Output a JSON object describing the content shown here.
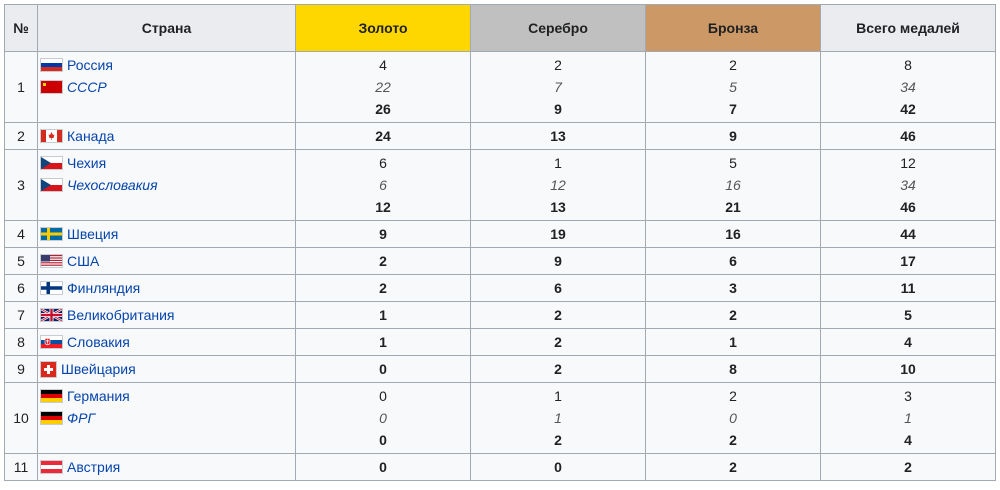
{
  "headers": {
    "rank": "№",
    "country": "Страна",
    "gold": "Золото",
    "silver": "Серебро",
    "bronze": "Бронза",
    "total": "Всего медалей"
  },
  "colors": {
    "gold": "#ffd700",
    "silver": "#c0c0c0",
    "bronze": "#cc9966",
    "header": "#eaecf0",
    "link": "#0645ad"
  },
  "rows": [
    {
      "rank": "1",
      "countries": [
        {
          "name": "Россия",
          "flag": "russia-flag-icon",
          "style": "normal"
        },
        {
          "name": "СССР",
          "flag": "ussr-flag-icon",
          "style": "italic"
        }
      ],
      "gold": [
        "4",
        "22",
        "26"
      ],
      "silver": [
        "2",
        "7",
        "9"
      ],
      "bronze": [
        "2",
        "5",
        "7"
      ],
      "total": [
        "8",
        "34",
        "42"
      ]
    },
    {
      "rank": "2",
      "countries": [
        {
          "name": "Канада",
          "flag": "canada-flag-icon",
          "style": "normal"
        }
      ],
      "gold": [
        "24"
      ],
      "silver": [
        "13"
      ],
      "bronze": [
        "9"
      ],
      "total": [
        "46"
      ]
    },
    {
      "rank": "3",
      "countries": [
        {
          "name": "Чехия",
          "flag": "czech-flag-icon",
          "style": "normal"
        },
        {
          "name": "Чехословакия",
          "flag": "czechoslovakia-flag-icon",
          "style": "italic"
        }
      ],
      "gold": [
        "6",
        "6",
        "12"
      ],
      "silver": [
        "1",
        "12",
        "13"
      ],
      "bronze": [
        "5",
        "16",
        "21"
      ],
      "total": [
        "12",
        "34",
        "46"
      ]
    },
    {
      "rank": "4",
      "countries": [
        {
          "name": "Швеция",
          "flag": "sweden-flag-icon",
          "style": "normal"
        }
      ],
      "gold": [
        "9"
      ],
      "silver": [
        "19"
      ],
      "bronze": [
        "16"
      ],
      "total": [
        "44"
      ]
    },
    {
      "rank": "5",
      "countries": [
        {
          "name": "США",
          "flag": "usa-flag-icon",
          "style": "normal"
        }
      ],
      "gold": [
        "2"
      ],
      "silver": [
        "9"
      ],
      "bronze": [
        "6"
      ],
      "total": [
        "17"
      ]
    },
    {
      "rank": "6",
      "countries": [
        {
          "name": "Финляндия",
          "flag": "finland-flag-icon",
          "style": "normal"
        }
      ],
      "gold": [
        "2"
      ],
      "silver": [
        "6"
      ],
      "bronze": [
        "3"
      ],
      "total": [
        "11"
      ]
    },
    {
      "rank": "7",
      "countries": [
        {
          "name": "Великобритания",
          "flag": "uk-flag-icon",
          "style": "normal"
        }
      ],
      "gold": [
        "1"
      ],
      "silver": [
        "2"
      ],
      "bronze": [
        "2"
      ],
      "total": [
        "5"
      ]
    },
    {
      "rank": "8",
      "countries": [
        {
          "name": "Словакия",
          "flag": "slovakia-flag-icon",
          "style": "normal"
        }
      ],
      "gold": [
        "1"
      ],
      "silver": [
        "2"
      ],
      "bronze": [
        "1"
      ],
      "total": [
        "4"
      ]
    },
    {
      "rank": "9",
      "countries": [
        {
          "name": "Швейцария",
          "flag": "switzerland-flag-icon",
          "style": "normal"
        }
      ],
      "gold": [
        "0"
      ],
      "silver": [
        "2"
      ],
      "bronze": [
        "8"
      ],
      "total": [
        "10"
      ]
    },
    {
      "rank": "10",
      "countries": [
        {
          "name": "Германия",
          "flag": "germany-flag-icon",
          "style": "normal"
        },
        {
          "name": "ФРГ",
          "flag": "frg-flag-icon",
          "style": "italic"
        }
      ],
      "gold": [
        "0",
        "0",
        "0"
      ],
      "silver": [
        "1",
        "1",
        "2"
      ],
      "bronze": [
        "2",
        "0",
        "2"
      ],
      "total": [
        "3",
        "1",
        "4"
      ]
    },
    {
      "rank": "11",
      "countries": [
        {
          "name": "Австрия",
          "flag": "austria-flag-icon",
          "style": "normal"
        }
      ],
      "gold": [
        "0"
      ],
      "silver": [
        "0"
      ],
      "bronze": [
        "2"
      ],
      "total": [
        "2"
      ]
    }
  ]
}
